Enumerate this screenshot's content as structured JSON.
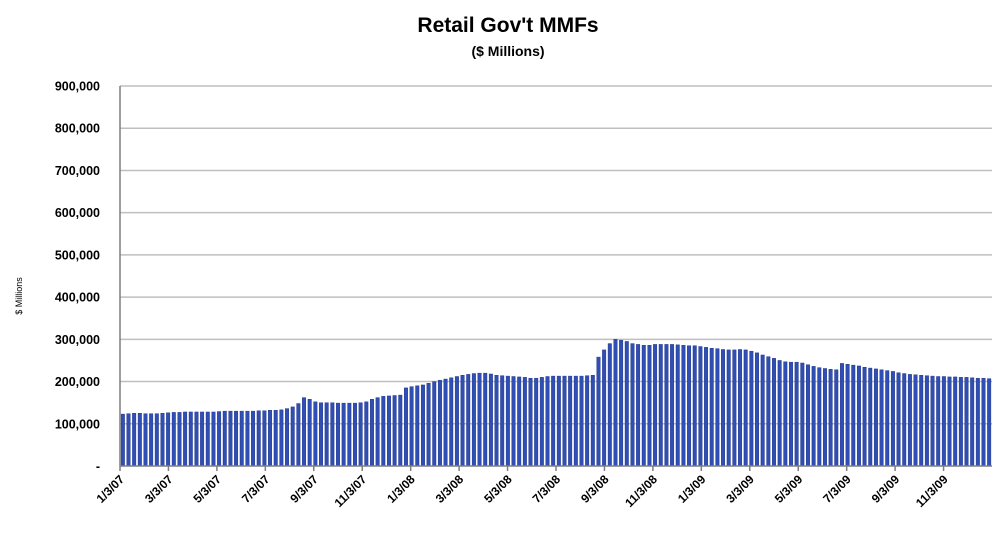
{
  "chart_data": {
    "type": "bar",
    "title": "Retail Gov't MMFs",
    "subtitle": "($ Millions)",
    "xlabel": "",
    "ylabel": "$ Millions",
    "ylim": [
      0,
      900000
    ],
    "y_ticks": [
      {
        "value": 0,
        "label": "-"
      },
      {
        "value": 100000,
        "label": "100,000"
      },
      {
        "value": 200000,
        "label": "200,000"
      },
      {
        "value": 300000,
        "label": "300,000"
      },
      {
        "value": 400000,
        "label": "400,000"
      },
      {
        "value": 500000,
        "label": "500,000"
      },
      {
        "value": 600000,
        "label": "600,000"
      },
      {
        "value": 700000,
        "label": "700,000"
      },
      {
        "value": 800000,
        "label": "800,000"
      },
      {
        "value": 900000,
        "label": "900,000"
      }
    ],
    "x_tick_labels": [
      "1/3/07",
      "3/3/07",
      "5/3/07",
      "7/3/07",
      "9/3/07",
      "11/3/07",
      "1/3/08",
      "3/3/08",
      "5/3/08",
      "7/3/08",
      "9/3/08",
      "11/3/08",
      "1/3/09",
      "3/3/09",
      "5/3/09",
      "7/3/09",
      "9/3/09",
      "11/3/09"
    ],
    "grid": true,
    "legend": "none",
    "bar_color": "#2f4fb5",
    "bar_edge_color": "#1a2d80",
    "frequency": "weekly",
    "values": [
      123000,
      124000,
      125000,
      125000,
      124000,
      124000,
      124000,
      125000,
      126000,
      127000,
      127000,
      128000,
      128000,
      128000,
      128000,
      128000,
      128000,
      129000,
      130000,
      130000,
      130000,
      130000,
      130000,
      130000,
      131000,
      131000,
      132000,
      132000,
      133000,
      136000,
      140000,
      148000,
      162000,
      158000,
      152000,
      150000,
      150000,
      150000,
      149000,
      149000,
      149000,
      149000,
      150000,
      152000,
      158000,
      162000,
      165000,
      166000,
      167000,
      168000,
      185000,
      188000,
      190000,
      192000,
      196000,
      200000,
      203000,
      206000,
      209000,
      212000,
      215000,
      217000,
      219000,
      220000,
      220000,
      218000,
      215000,
      214000,
      213000,
      212000,
      211000,
      210000,
      208000,
      208000,
      210000,
      212000,
      213000,
      213000,
      213000,
      213000,
      213000,
      213000,
      214000,
      215000,
      258000,
      275000,
      290000,
      300000,
      298000,
      295000,
      290000,
      288000,
      286000,
      286000,
      288000,
      288000,
      288000,
      288000,
      287000,
      286000,
      285000,
      285000,
      283000,
      281000,
      279000,
      278000,
      276000,
      275000,
      275000,
      276000,
      275000,
      272000,
      268000,
      263000,
      259000,
      255000,
      250000,
      247000,
      246000,
      246000,
      244000,
      240000,
      236000,
      233000,
      231000,
      229000,
      228000,
      243000,
      241000,
      239000,
      237000,
      234000,
      232000,
      230000,
      228000,
      226000,
      224000,
      221000,
      219000,
      217000,
      216000,
      215000,
      214000,
      213000,
      212000,
      212000,
      211000,
      211000,
      210000,
      210000,
      209000,
      208000,
      208000,
      207000
    ]
  }
}
